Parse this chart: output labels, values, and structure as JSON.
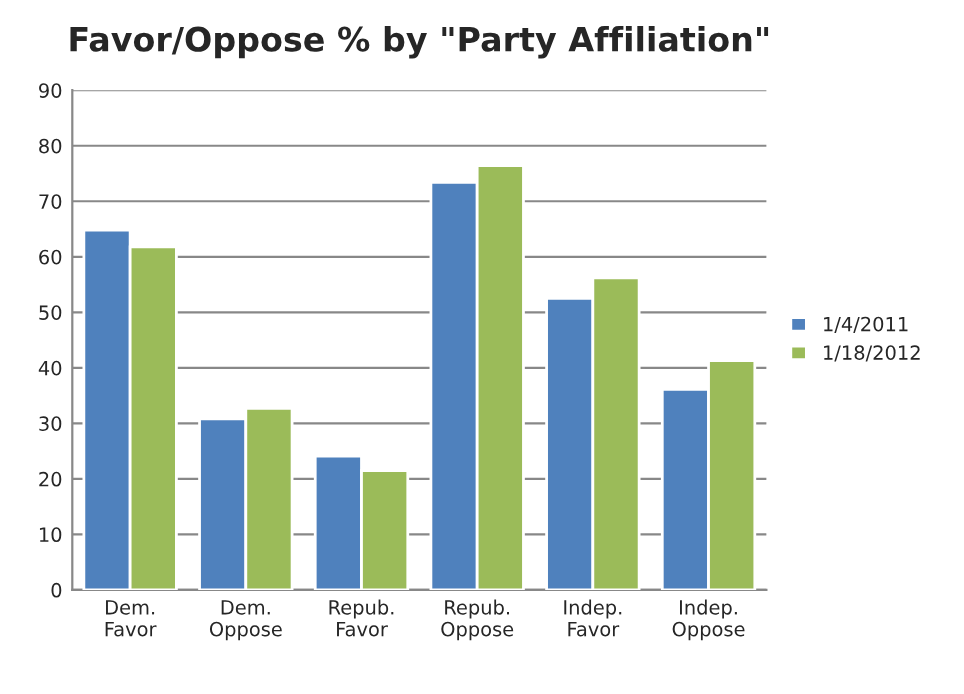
{
  "chart_data": {
    "type": "bar",
    "title": "Favor/Oppose % by \"Party Affiliation\"",
    "categories": [
      "Dem.\nFavor",
      "Dem.\nOppose",
      "Repub.\nFavor",
      "Repub.\nOppose",
      "Indep.\nFavor",
      "Indep.\nOppose"
    ],
    "series": [
      {
        "name": "1/4/2011",
        "color": "#4f81bd",
        "values": [
          64.8,
          30.8,
          24.1,
          73.4,
          52.5,
          36.1
        ]
      },
      {
        "name": "1/18/2012",
        "color": "#9bbb59",
        "values": [
          61.8,
          32.7,
          21.5,
          76.4,
          56.2,
          41.3
        ]
      }
    ],
    "ylim": [
      0,
      90
    ],
    "yticks": [
      0,
      10,
      20,
      30,
      40,
      50,
      60,
      70,
      80,
      90
    ],
    "grid": "y",
    "legend": "right"
  }
}
